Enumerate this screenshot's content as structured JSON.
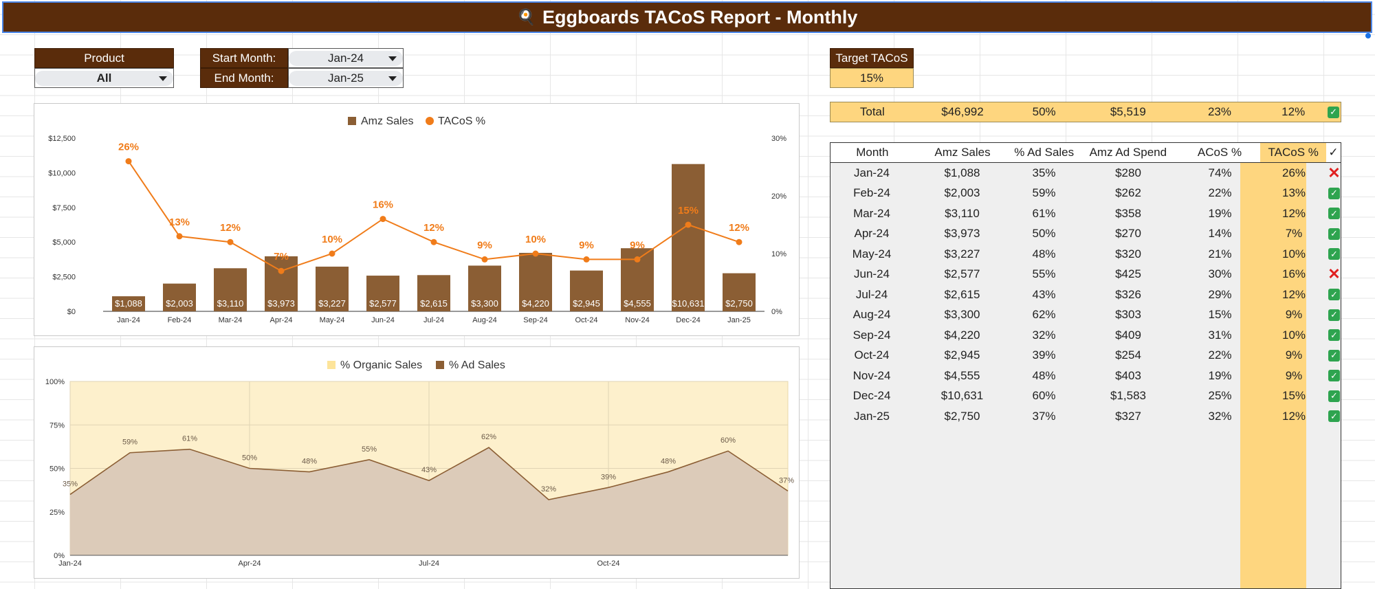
{
  "title": "Eggboards TACoS Report - Monthly",
  "title_icon": "🍳",
  "filters": {
    "product_label": "Product",
    "product_value": "All",
    "start_label": "Start Month:",
    "start_value": "Jan-24",
    "end_label": "End Month:",
    "end_value": "Jan-25",
    "target_label": "Target TACoS",
    "target_value": "15%"
  },
  "total": {
    "label": "Total",
    "amz_sales": "$46,992",
    "pct_ad_sales": "50%",
    "ad_spend": "$5,519",
    "acos": "23%",
    "tacos": "12%",
    "check": "✓"
  },
  "table": {
    "headers": [
      "Month",
      "Amz Sales",
      "% Ad Sales",
      "Amz Ad Spend",
      "ACoS %",
      "TACoS %",
      "✓"
    ],
    "rows": [
      {
        "month": "Jan-24",
        "sales": "$1,088",
        "ad": "35%",
        "spend": "$280",
        "acos": "74%",
        "tacos": "26%",
        "ok": false
      },
      {
        "month": "Feb-24",
        "sales": "$2,003",
        "ad": "59%",
        "spend": "$262",
        "acos": "22%",
        "tacos": "13%",
        "ok": true
      },
      {
        "month": "Mar-24",
        "sales": "$3,110",
        "ad": "61%",
        "spend": "$358",
        "acos": "19%",
        "tacos": "12%",
        "ok": true
      },
      {
        "month": "Apr-24",
        "sales": "$3,973",
        "ad": "50%",
        "spend": "$270",
        "acos": "14%",
        "tacos": "7%",
        "ok": true
      },
      {
        "month": "May-24",
        "sales": "$3,227",
        "ad": "48%",
        "spend": "$320",
        "acos": "21%",
        "tacos": "10%",
        "ok": true
      },
      {
        "month": "Jun-24",
        "sales": "$2,577",
        "ad": "55%",
        "spend": "$425",
        "acos": "30%",
        "tacos": "16%",
        "ok": false
      },
      {
        "month": "Jul-24",
        "sales": "$2,615",
        "ad": "43%",
        "spend": "$326",
        "acos": "29%",
        "tacos": "12%",
        "ok": true
      },
      {
        "month": "Aug-24",
        "sales": "$3,300",
        "ad": "62%",
        "spend": "$303",
        "acos": "15%",
        "tacos": "9%",
        "ok": true
      },
      {
        "month": "Sep-24",
        "sales": "$4,220",
        "ad": "32%",
        "spend": "$409",
        "acos": "31%",
        "tacos": "10%",
        "ok": true
      },
      {
        "month": "Oct-24",
        "sales": "$2,945",
        "ad": "39%",
        "spend": "$254",
        "acos": "22%",
        "tacos": "9%",
        "ok": true
      },
      {
        "month": "Nov-24",
        "sales": "$4,555",
        "ad": "48%",
        "spend": "$403",
        "acos": "19%",
        "tacos": "9%",
        "ok": true
      },
      {
        "month": "Dec-24",
        "sales": "$10,631",
        "ad": "60%",
        "spend": "$1,583",
        "acos": "25%",
        "tacos": "15%",
        "ok": true
      },
      {
        "month": "Jan-25",
        "sales": "$2,750",
        "ad": "37%",
        "spend": "$327",
        "acos": "32%",
        "tacos": "12%",
        "ok": true
      }
    ],
    "ok_symbol": "✓",
    "bad_symbol": "✕"
  },
  "colors": {
    "brown": "#5a2c0b",
    "bar": "#8b5e34",
    "orange": "#f07c1a",
    "highlight": "#fed67f",
    "organic_fill": "#fdf0cc",
    "ad_fill": "#dccbb9"
  },
  "chart_data": [
    {
      "type": "bar",
      "legend": [
        "Amz Sales",
        "TACoS %"
      ],
      "legend_position": "top",
      "categories": [
        "Jan-24",
        "Feb-24",
        "Mar-24",
        "Apr-24",
        "May-24",
        "Jun-24",
        "Jul-24",
        "Aug-24",
        "Sep-24",
        "Oct-24",
        "Nov-24",
        "Dec-24",
        "Jan-25"
      ],
      "bar_values": [
        1088,
        2003,
        3110,
        3973,
        3227,
        2577,
        2615,
        3300,
        4220,
        2945,
        4555,
        10631,
        2750
      ],
      "bar_labels": [
        "$1,088",
        "$2,003",
        "$3,110",
        "$3,973",
        "$3,227",
        "$2,577",
        "$2,615",
        "$3,300",
        "$4,220",
        "$2,945",
        "$4,555",
        "$10,631",
        "$2,750"
      ],
      "line_values": [
        26,
        13,
        12,
        7,
        10,
        16,
        12,
        9,
        10,
        9,
        9,
        15,
        12
      ],
      "line_labels": [
        "26%",
        "13%",
        "12%",
        "7%",
        "10%",
        "16%",
        "12%",
        "9%",
        "10%",
        "9%",
        "9%",
        "15%",
        "12%"
      ],
      "y_left_ticks": [
        "$0",
        "$2,500",
        "$5,000",
        "$7,500",
        "$10,000",
        "$12,500"
      ],
      "y_left_range": [
        0,
        12500
      ],
      "y_right_ticks": [
        "0%",
        "10%",
        "20%",
        "30%"
      ],
      "y_right_range": [
        0,
        30
      ]
    },
    {
      "type": "area",
      "legend": [
        "% Organic Sales",
        "% Ad Sales"
      ],
      "legend_position": "top",
      "x": [
        "Jan-24",
        "Feb-24",
        "Mar-24",
        "Apr-24",
        "May-24",
        "Jun-24",
        "Jul-24",
        "Aug-24",
        "Sep-24",
        "Oct-24",
        "Nov-24",
        "Dec-24",
        "Jan-25"
      ],
      "ad_values": [
        35,
        59,
        61,
        50,
        48,
        55,
        43,
        62,
        32,
        39,
        48,
        60,
        37
      ],
      "ad_labels": [
        "35%",
        "59%",
        "61%",
        "50%",
        "48%",
        "55%",
        "43%",
        "62%",
        "32%",
        "39%",
        "48%",
        "60%",
        "37%"
      ],
      "y_ticks": [
        "0%",
        "25%",
        "50%",
        "75%",
        "100%"
      ],
      "y_range": [
        0,
        100
      ],
      "x_ticks": [
        "Jan-24",
        "Apr-24",
        "Jul-24",
        "Oct-24"
      ],
      "x_tick_indices": [
        0,
        3,
        6,
        9
      ]
    }
  ]
}
